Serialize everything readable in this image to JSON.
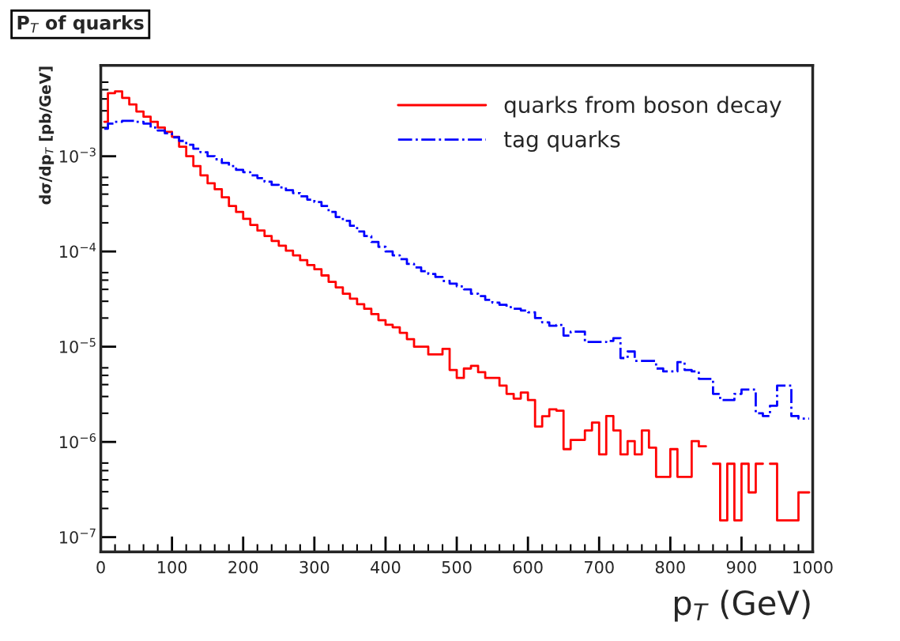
{
  "chart_data": {
    "type": "step",
    "title": "P$_{T}$ of quarks",
    "xlabel": "p$_{T}$ (GeV)",
    "ylabel": "dσ/dp$_{T}$ [pb/GeV]",
    "x": [
      5,
      15,
      25,
      35,
      45,
      55,
      65,
      75,
      85,
      95,
      105,
      115,
      125,
      135,
      145,
      155,
      165,
      175,
      185,
      195,
      205,
      215,
      225,
      235,
      245,
      255,
      265,
      275,
      285,
      295,
      305,
      315,
      325,
      335,
      345,
      355,
      365,
      375,
      385,
      395,
      405,
      415,
      425,
      435,
      445,
      455,
      465,
      475,
      485,
      495,
      505,
      515,
      525,
      535,
      545,
      555,
      565,
      575,
      585,
      595,
      605,
      615,
      625,
      635,
      645,
      655,
      665,
      675,
      685,
      695,
      705,
      715,
      725,
      735,
      745,
      755,
      765,
      775,
      785,
      795,
      805,
      815,
      825,
      835,
      845,
      855,
      865,
      875,
      885,
      895,
      905,
      915,
      925,
      935,
      945,
      955,
      965,
      975,
      985,
      995
    ],
    "series": [
      {
        "name": "quarks from boson decay",
        "color": "#ff0000",
        "line_style": "solid",
        "values": [
          0.0023,
          0.0046,
          0.0048,
          0.0041,
          0.0035,
          0.00295,
          0.0026,
          0.0023,
          0.002,
          0.0018,
          0.0016,
          0.00126,
          0.001,
          0.00079,
          0.00063,
          0.00052,
          0.00045,
          0.00037,
          0.0003,
          0.00026,
          0.00022,
          0.00019,
          0.000166,
          0.000145,
          0.000129,
          0.000115,
          0.000102,
          9.1e-05,
          8.1e-05,
          7.2e-05,
          6.5e-05,
          5.6e-05,
          4.8e-05,
          4.2e-05,
          3.6e-05,
          3.2e-05,
          2.8e-05,
          2.5e-05,
          2.2e-05,
          1.9e-05,
          1.7e-05,
          1.6e-05,
          1.4e-05,
          1.2e-05,
          1e-05,
          1e-05,
          8.3e-06,
          8.3e-06,
          9.5e-06,
          5.7e-06,
          4.7e-06,
          5.9e-06,
          6.3e-06,
          5.4e-06,
          4.7e-06,
          4.7e-06,
          3.9e-06,
          3.2e-06,
          2.85e-06,
          3.3e-06,
          2.75e-06,
          1.45e-06,
          1.86e-06,
          2.2e-06,
          2.13e-06,
          8.4e-07,
          1.05e-06,
          1.05e-06,
          1.32e-06,
          1.6e-06,
          7.4e-07,
          1.87e-06,
          1.32e-06,
          7.4e-07,
          1.02e-06,
          7.4e-07,
          1.32e-06,
          8.7e-07,
          4.3e-07,
          4.3e-07,
          8.4e-07,
          4.3e-07,
          4.3e-07,
          1.02e-06,
          9e-07,
          null,
          5.9e-07,
          1.5e-07,
          5.9e-07,
          1.5e-07,
          5.9e-07,
          2.95e-07,
          5.9e-07,
          null,
          5.9e-07,
          1.5e-07,
          1.5e-07,
          1.5e-07,
          2.95e-07,
          2.95e-07
        ]
      },
      {
        "name": "tag quarks",
        "color": "#0000ff",
        "line_style": "dashed",
        "values": [
          0.00195,
          0.0022,
          0.0023,
          0.00235,
          0.00235,
          0.0023,
          0.0022,
          0.002,
          0.00186,
          0.00174,
          0.00158,
          0.00145,
          0.00132,
          0.0012,
          0.0011,
          0.001,
          0.00093,
          0.00085,
          0.00079,
          0.00072,
          0.00068,
          0.00063,
          0.00059,
          0.00054,
          0.0005,
          0.00047,
          0.00044,
          0.00041,
          0.00038,
          0.00035,
          0.00033,
          0.0003,
          0.00026,
          0.00023,
          0.00021,
          0.000186,
          0.000162,
          0.000145,
          0.000126,
          0.000112,
          0.0001,
          9.1e-05,
          8.3e-05,
          7.4e-05,
          6.8e-05,
          6.2e-05,
          5.8e-05,
          5.4e-05,
          4.9e-05,
          4.6e-05,
          4.3e-05,
          4e-05,
          3.6e-05,
          3.4e-05,
          3.1e-05,
          2.9e-05,
          2.75e-05,
          2.6e-05,
          2.5e-05,
          2.4e-05,
          2.3e-05,
          2e-05,
          1.8e-05,
          1.66e-05,
          1.69e-05,
          1.31e-05,
          1.44e-05,
          1.44e-05,
          1.12e-05,
          1.12e-05,
          1.12e-05,
          1.15e-05,
          1.23e-05,
          7.6e-06,
          8.9e-06,
          7.1e-06,
          7.1e-06,
          7.1e-06,
          5.9e-06,
          5.5e-06,
          5.5e-06,
          6.9e-06,
          5.7e-06,
          5.5e-06,
          4.6e-06,
          4.6e-06,
          3.2e-06,
          2.75e-06,
          2.75e-06,
          3.2e-06,
          3.55e-06,
          3.55e-06,
          2e-06,
          1.87e-06,
          2.4e-06,
          3.9e-06,
          3.9e-06,
          1.87e-06,
          1.76e-06,
          1.76e-06
        ]
      }
    ],
    "log": "y",
    "xlim": [
      0,
      1000
    ],
    "xticks": [
      0,
      100,
      200,
      300,
      400,
      500,
      600,
      700,
      800,
      900,
      1000
    ],
    "ylim": [
      7e-08,
      0.009
    ],
    "yticks": [
      {
        "value": 1e-07,
        "label": "10$^{−7}$"
      },
      {
        "value": 1e-06,
        "label": "10$^{−6}$"
      },
      {
        "value": 1e-05,
        "label": "10$^{−5}$"
      },
      {
        "value": 0.0001,
        "label": "10$^{−4}$"
      },
      {
        "value": 0.001,
        "label": "10$^{−3}$"
      }
    ],
    "grid": false,
    "legend": "top right"
  }
}
